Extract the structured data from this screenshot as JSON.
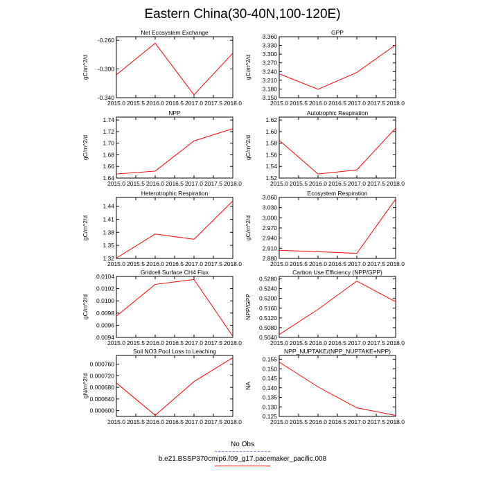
{
  "page": {
    "title": "Eastern China(30-40N,100-120E)"
  },
  "legend": {
    "entries": [
      {
        "label": "No Obs",
        "color": "#8080ff",
        "style": "dashed"
      },
      {
        "label": "b.e21.BSSP370cmip6.f09_g17.pacemaker_pacific.008",
        "color": "#ff0000",
        "style": "solid"
      }
    ]
  },
  "chart_data": [
    {
      "type": "line",
      "title": "Net Ecosystem Exchange",
      "ylabel": "gC/m^2/d",
      "x": [
        2015,
        2016,
        2017,
        2018
      ],
      "xlim": [
        2015,
        2018
      ],
      "xticks": [
        "2015.0",
        "2015.5",
        "2016.0",
        "2016.5",
        "2017.0",
        "2017.5",
        "2018.0"
      ],
      "ylim": [
        -0.34,
        -0.255
      ],
      "yticks": [
        "-0.260",
        "-0.300",
        "-0.340"
      ],
      "ytick_values": [
        -0.26,
        -0.3,
        -0.34
      ],
      "series": [
        {
          "values": [
            -0.308,
            -0.264,
            -0.336,
            -0.278
          ],
          "color": "#ff0000"
        }
      ]
    },
    {
      "type": "line",
      "title": "GPP",
      "ylabel": "gC/m^2/d",
      "x": [
        2015,
        2016,
        2017,
        2018
      ],
      "xlim": [
        2015,
        2018
      ],
      "xticks": [
        "2015.0",
        "2015.5",
        "2016.0",
        "2016.5",
        "2017.0",
        "2017.5",
        "2018.0"
      ],
      "ylim": [
        3.15,
        3.36
      ],
      "yticks": [
        "3.360",
        "3.330",
        "3.300",
        "3.270",
        "3.240",
        "3.210",
        "3.180",
        "3.150"
      ],
      "ytick_values": [
        3.36,
        3.33,
        3.3,
        3.27,
        3.24,
        3.21,
        3.18,
        3.15
      ],
      "series": [
        {
          "values": [
            3.232,
            3.179,
            3.237,
            3.332
          ],
          "color": "#ff0000"
        }
      ]
    },
    {
      "type": "line",
      "title": "NPP",
      "ylabel": "gC/m^2/d",
      "x": [
        2015,
        2016,
        2017,
        2018
      ],
      "xlim": [
        2015,
        2018
      ],
      "xticks": [
        "2015.0",
        "2015.5",
        "2016.0",
        "2016.5",
        "2017.0",
        "2017.5",
        "2018.0"
      ],
      "ylim": [
        1.64,
        1.745
      ],
      "yticks": [
        "1.74",
        "1.72",
        "1.70",
        "1.68",
        "1.66",
        "1.64"
      ],
      "ytick_values": [
        1.74,
        1.72,
        1.7,
        1.68,
        1.66,
        1.64
      ],
      "series": [
        {
          "values": [
            1.647,
            1.652,
            1.704,
            1.725
          ],
          "color": "#ff0000"
        }
      ]
    },
    {
      "type": "line",
      "title": "Autotrophic Respiration",
      "ylabel": "gC/m^2/d",
      "x": [
        2015,
        2016,
        2017,
        2018
      ],
      "xlim": [
        2015,
        2018
      ],
      "xticks": [
        "2015.0",
        "2015.5",
        "2016.0",
        "2016.5",
        "2017.0",
        "2017.5",
        "2018.0"
      ],
      "ylim": [
        1.52,
        1.625
      ],
      "yticks": [
        "1.62",
        "1.60",
        "1.58",
        "1.56",
        "1.54",
        "1.52"
      ],
      "ytick_values": [
        1.62,
        1.6,
        1.58,
        1.56,
        1.54,
        1.52
      ],
      "series": [
        {
          "values": [
            1.585,
            1.527,
            1.534,
            1.606
          ],
          "color": "#ff0000"
        }
      ]
    },
    {
      "type": "line",
      "title": "Heterotrophic Respiration",
      "ylabel": "gC/m^2/d",
      "x": [
        2015,
        2016,
        2017,
        2018
      ],
      "xlim": [
        2015,
        2018
      ],
      "xticks": [
        "2015.0",
        "2015.5",
        "2016.0",
        "2016.5",
        "2017.0",
        "2017.5",
        "2018.0"
      ],
      "ylim": [
        1.32,
        1.46
      ],
      "yticks": [
        "1.44",
        "1.41",
        "1.38",
        "1.35",
        "1.32"
      ],
      "ytick_values": [
        1.44,
        1.41,
        1.38,
        1.35,
        1.32
      ],
      "series": [
        {
          "values": [
            1.321,
            1.376,
            1.364,
            1.452
          ],
          "color": "#ff0000"
        }
      ]
    },
    {
      "type": "line",
      "title": "Ecosystem Respiration",
      "ylabel": "gC/m^2/d",
      "x": [
        2015,
        2016,
        2017,
        2018
      ],
      "xlim": [
        2015,
        2018
      ],
      "xticks": [
        "2015.0",
        "2015.5",
        "2016.0",
        "2016.5",
        "2017.0",
        "2017.5",
        "2018.0"
      ],
      "ylim": [
        2.88,
        3.06
      ],
      "yticks": [
        "3.060",
        "3.030",
        "3.000",
        "2.970",
        "2.940",
        "2.910",
        "2.880"
      ],
      "ytick_values": [
        3.06,
        3.03,
        3.0,
        2.97,
        2.94,
        2.91,
        2.88
      ],
      "series": [
        {
          "values": [
            2.904,
            2.9,
            2.895,
            3.055
          ],
          "color": "#ff0000"
        }
      ]
    },
    {
      "type": "line",
      "title": "Gridcell Surface CH4 Flux",
      "ylabel": "gC/m^2/d",
      "x": [
        2015,
        2016,
        2017,
        2018
      ],
      "xlim": [
        2015,
        2018
      ],
      "xticks": [
        "2015.0",
        "2015.5",
        "2016.0",
        "2016.5",
        "2017.0",
        "2017.5",
        "2018.0"
      ],
      "ylim": [
        0.0094,
        0.0104
      ],
      "yticks": [
        "0.0104",
        "0.0102",
        "0.0100",
        "0.0098",
        "0.0096",
        "0.0094"
      ],
      "ytick_values": [
        0.0104,
        0.0102,
        0.01,
        0.0098,
        0.0096,
        0.0094
      ],
      "series": [
        {
          "values": [
            0.00975,
            0.01027,
            0.01035,
            0.00942
          ],
          "color": "#ff0000"
        }
      ]
    },
    {
      "type": "line",
      "title": "Carbon Use Efficiency (NPP/GPP)",
      "ylabel": "NPP/GPP",
      "x": [
        2015,
        2016,
        2017,
        2018
      ],
      "xlim": [
        2015,
        2018
      ],
      "xticks": [
        "2015.0",
        "2015.5",
        "2016.0",
        "2016.5",
        "2017.0",
        "2017.5",
        "2018.0"
      ],
      "ylim": [
        0.504,
        0.529
      ],
      "yticks": [
        "0.5280",
        "0.5240",
        "0.5200",
        "0.5160",
        "0.5120",
        "0.5080",
        "0.5040"
      ],
      "ytick_values": [
        0.528,
        0.524,
        0.52,
        0.516,
        0.512,
        0.508,
        0.504
      ],
      "series": [
        {
          "values": [
            0.5052,
            0.5155,
            0.5271,
            0.5186
          ],
          "color": "#ff0000"
        }
      ]
    },
    {
      "type": "line",
      "title": "Soil NO3 Pool Loss to Leaching",
      "ylabel": "gN/m^2/d",
      "x": [
        2015,
        2016,
        2017,
        2018
      ],
      "xlim": [
        2015,
        2018
      ],
      "xticks": [
        "2015.0",
        "2015.5",
        "2016.0",
        "2016.5",
        "2017.0",
        "2017.5",
        "2018.0"
      ],
      "ylim": [
        0.00058,
        0.00079
      ],
      "yticks": [
        "0.000760",
        "0.000720",
        "0.000680",
        "0.000640",
        "0.000600"
      ],
      "ytick_values": [
        0.00076,
        0.00072,
        0.00068,
        0.00064,
        0.0006
      ],
      "series": [
        {
          "values": [
            0.000695,
            0.000584,
            0.0007,
            0.000782
          ],
          "color": "#ff0000"
        }
      ]
    },
    {
      "type": "line",
      "title": "NPP_NUPTAKE/(NPP_NUPTAKE+NPP)",
      "ylabel": "NA",
      "x": [
        2015,
        2016,
        2017,
        2018
      ],
      "xlim": [
        2015,
        2018
      ],
      "xticks": [
        "2015.0",
        "2015.5",
        "2016.0",
        "2016.5",
        "2017.0",
        "2017.5",
        "2018.0"
      ],
      "ylim": [
        0.125,
        0.157
      ],
      "yticks": [
        "0.155",
        "0.150",
        "0.145",
        "0.140",
        "0.135",
        "0.130",
        "0.125"
      ],
      "ytick_values": [
        0.155,
        0.15,
        0.145,
        0.14,
        0.135,
        0.13,
        0.125
      ],
      "series": [
        {
          "values": [
            0.1535,
            0.1405,
            0.1295,
            0.1255
          ],
          "color": "#ff0000"
        }
      ]
    }
  ]
}
